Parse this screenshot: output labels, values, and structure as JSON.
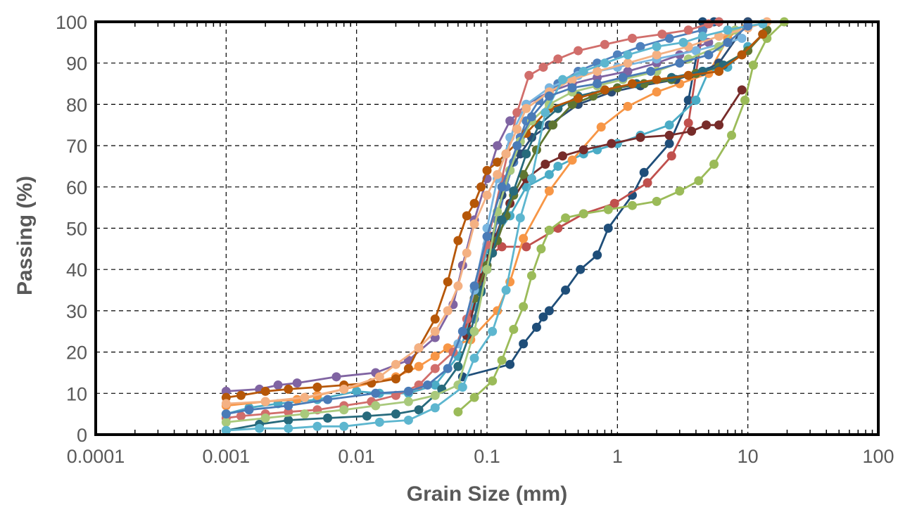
{
  "chart_data": {
    "type": "line",
    "title": "",
    "xlabel": "Grain Size (mm)",
    "ylabel": "Passing (%)",
    "xscale": "log",
    "xlim": [
      0.0001,
      100
    ],
    "ylim": [
      0,
      100
    ],
    "xticks": [
      "0.0001",
      "0.001",
      "0.01",
      "0.1",
      "1",
      "10",
      "100"
    ],
    "yticks": [
      "0",
      "10",
      "20",
      "30",
      "40",
      "50",
      "60",
      "70",
      "80",
      "90",
      "100"
    ],
    "grid": "dashed, black",
    "legend": "none",
    "series": [
      {
        "color": "#1F4E79",
        "x": [
          0.065,
          0.15,
          0.19,
          0.24,
          0.27,
          0.3,
          0.4,
          0.52,
          0.7,
          0.85,
          1.3,
          1.6,
          2.5,
          3.5,
          4.5,
          5.5
        ],
        "y": [
          14,
          17,
          22,
          26,
          28.5,
          30,
          35,
          40,
          43.5,
          50,
          58,
          63.5,
          70.5,
          81,
          100,
          100
        ]
      },
      {
        "color": "#C0504D",
        "x": [
          0.07,
          0.08,
          0.09,
          0.11,
          0.13,
          0.2,
          0.35,
          0.55,
          0.95,
          1.7,
          2.6,
          3.5,
          4.5
        ],
        "y": [
          26,
          33,
          37,
          44,
          45.5,
          45.5,
          50,
          53.5,
          56,
          61,
          67.5,
          75.5,
          98
        ]
      },
      {
        "color": "#9BBB59",
        "x": [
          0.06,
          0.08,
          0.11,
          0.13,
          0.16,
          0.19,
          0.22,
          0.26,
          0.3,
          0.4,
          0.55,
          0.85,
          1.3,
          2,
          3,
          4.2,
          5.5,
          7.5,
          9.5,
          11,
          14,
          19
        ],
        "y": [
          5.5,
          9,
          13,
          18,
          25.5,
          31,
          38.5,
          45,
          49.5,
          52.5,
          53.5,
          54.5,
          55.5,
          56.5,
          59,
          61.5,
          65.5,
          72.5,
          81,
          89.5,
          96,
          100
        ]
      },
      {
        "color": "#8064A2",
        "x": [
          0.001,
          0.0018,
          0.0025,
          0.0035,
          0.007,
          0.014,
          0.025,
          0.04,
          0.055,
          0.065,
          0.08,
          0.1,
          0.12,
          0.15,
          0.2,
          0.3,
          0.45,
          0.7,
          1.2,
          2,
          3,
          5
        ],
        "y": [
          10.5,
          11,
          12,
          12.5,
          14,
          15,
          18,
          23.5,
          31.5,
          41,
          52,
          62,
          70,
          76,
          80,
          83,
          85,
          86.5,
          88,
          90,
          92,
          95
        ]
      },
      {
        "color": "#4BACC6",
        "x": [
          0.001,
          0.0015,
          0.0025,
          0.005,
          0.01,
          0.015,
          0.025,
          0.04,
          0.06,
          0.08,
          0.1,
          0.15,
          0.2,
          0.3,
          0.35,
          0.55,
          0.7,
          1,
          1.5,
          2.5,
          4,
          5,
          7,
          10
        ],
        "y": [
          5,
          6.5,
          7.5,
          8.5,
          10.5,
          10,
          10,
          12,
          19,
          31,
          45,
          53,
          60,
          63,
          65,
          68,
          69,
          70.5,
          72.5,
          75,
          81,
          88,
          89,
          94
        ]
      },
      {
        "color": "#F79646",
        "x": [
          0.001,
          0.002,
          0.0035,
          0.005,
          0.008,
          0.013,
          0.02,
          0.03,
          0.04,
          0.05,
          0.075,
          0.12,
          0.15,
          0.19,
          0.3,
          0.45,
          0.75,
          1.2,
          2,
          3,
          5,
          7,
          10
        ],
        "y": [
          7,
          8,
          8.5,
          9.5,
          11,
          12.5,
          14,
          16.5,
          19,
          21,
          23,
          30,
          37,
          47.5,
          59,
          66.5,
          74.5,
          79.5,
          83,
          85,
          87.5,
          96,
          100
        ]
      },
      {
        "color": "#4F81BD",
        "x": [
          0.08,
          0.1,
          0.12,
          0.14,
          0.16,
          0.18,
          0.2,
          0.25,
          0.35,
          0.5,
          0.7,
          1,
          1.5,
          2.5,
          4.5,
          6
        ],
        "y": [
          28,
          40,
          52,
          60,
          66,
          72,
          76,
          81,
          85,
          88,
          90,
          92,
          94,
          96,
          98,
          100
        ]
      },
      {
        "color": "#2C4D75",
        "x": [
          0.09,
          0.11,
          0.13,
          0.15,
          0.18,
          0.22,
          0.3,
          0.5,
          0.9,
          1.5,
          2.8,
          4.5,
          6,
          10
        ],
        "y": [
          35,
          48,
          58,
          64,
          68,
          72,
          75,
          80,
          83,
          84.5,
          86,
          88,
          90,
          100
        ]
      },
      {
        "color": "#772C2A",
        "x": [
          0.07,
          0.09,
          0.11,
          0.13,
          0.15,
          0.2,
          0.28,
          0.38,
          0.55,
          0.9,
          1.5,
          2.5,
          3.7,
          4.8,
          6,
          9
        ],
        "y": [
          24,
          38,
          46,
          52,
          56,
          62,
          65.5,
          67.5,
          69,
          70.5,
          72,
          72.5,
          73.5,
          75,
          75,
          83.5
        ]
      },
      {
        "color": "#5F7530",
        "x": [
          0.08,
          0.1,
          0.12,
          0.14,
          0.16,
          0.19,
          0.24,
          0.32,
          0.45,
          0.65,
          1,
          1.6,
          2.6,
          4,
          6,
          10,
          14
        ],
        "y": [
          33,
          41,
          47,
          53,
          58,
          63,
          69,
          75,
          80,
          82,
          84,
          85,
          86,
          87.5,
          89,
          93,
          98
        ]
      },
      {
        "color": "#276A7C",
        "x": [
          0.001,
          0.0018,
          0.003,
          0.006,
          0.012,
          0.02,
          0.03,
          0.045,
          0.06,
          0.075,
          0.09,
          0.11,
          0.13,
          0.16,
          0.2,
          0.25,
          0.35,
          0.5,
          0.8,
          1.4,
          2.6,
          4.5,
          6.5,
          9,
          13
        ],
        "y": [
          1,
          2.5,
          3.5,
          4,
          4.5,
          5,
          6,
          11,
          16.5,
          25,
          34.5,
          44,
          52,
          59,
          68,
          75,
          79,
          82,
          83.5,
          85,
          86.5,
          88,
          89.5,
          92,
          97
        ]
      },
      {
        "color": "#B65708",
        "x": [
          0.001,
          0.0013,
          0.002,
          0.003,
          0.005,
          0.008,
          0.013,
          0.02,
          0.025,
          0.03,
          0.04,
          0.05,
          0.06,
          0.07,
          0.08,
          0.09,
          0.1,
          0.12,
          0.14,
          0.2,
          0.3,
          0.5,
          0.8,
          1.3,
          2,
          3.5,
          6,
          9,
          13
        ],
        "y": [
          9,
          9.5,
          10.5,
          11,
          11.5,
          12,
          12.5,
          13.5,
          16,
          21,
          28,
          37,
          47,
          53,
          56,
          60,
          64,
          66,
          68,
          73,
          79,
          81.5,
          83.5,
          85,
          86,
          87,
          88,
          92,
          97
        ]
      },
      {
        "color": "#D16E6B",
        "x": [
          0.001,
          0.0013,
          0.002,
          0.003,
          0.005,
          0.008,
          0.013,
          0.02,
          0.03,
          0.04,
          0.055,
          0.07,
          0.1,
          0.13,
          0.17,
          0.21,
          0.27,
          0.35,
          0.5,
          0.8,
          1.3,
          2.2,
          3.5,
          5,
          6
        ],
        "y": [
          4,
          4.5,
          5,
          5.5,
          6,
          7,
          8,
          9.5,
          12,
          16,
          20,
          28,
          46,
          62,
          78,
          87,
          89,
          91,
          93,
          94.5,
          96,
          97,
          98,
          99.5,
          100
        ]
      },
      {
        "color": "#79B6E0",
        "x": [
          0.06,
          0.08,
          0.1,
          0.12,
          0.15,
          0.2,
          0.3,
          0.5,
          1,
          2,
          4,
          9
        ],
        "y": [
          22,
          35,
          50,
          62,
          72,
          80,
          84,
          87,
          89,
          91,
          93,
          96
        ]
      },
      {
        "color": "#A9C97C",
        "x": [
          0.001,
          0.002,
          0.004,
          0.008,
          0.014,
          0.025,
          0.04,
          0.06,
          0.08,
          0.1,
          0.12,
          0.15,
          0.18,
          0.22,
          0.3,
          0.45,
          0.7,
          1.1,
          2,
          3.5,
          6,
          8
        ],
        "y": [
          3,
          4,
          5,
          6,
          7,
          8,
          9.5,
          12,
          25,
          40,
          54,
          64,
          71,
          76,
          80,
          83,
          84.5,
          86,
          88,
          91,
          94,
          98
        ]
      },
      {
        "color": "#F4B183",
        "x": [
          0.001,
          0.002,
          0.004,
          0.008,
          0.015,
          0.02,
          0.03,
          0.04,
          0.05,
          0.06,
          0.07,
          0.08,
          0.1,
          0.12,
          0.14,
          0.17,
          0.2,
          0.3,
          0.45,
          0.7,
          1.2,
          2,
          3.5,
          6,
          10,
          14
        ],
        "y": [
          7.5,
          8,
          9,
          11,
          14,
          17,
          21,
          25,
          30,
          36,
          44,
          51,
          58,
          63,
          68,
          74,
          79,
          83,
          86,
          88,
          90,
          92,
          94,
          96.5,
          98.5,
          100
        ]
      },
      {
        "color": "#5DB6CF",
        "x": [
          0.001,
          0.0018,
          0.003,
          0.005,
          0.008,
          0.015,
          0.025,
          0.04,
          0.065,
          0.08,
          0.11,
          0.14,
          0.18,
          0.22,
          0.28,
          0.38,
          0.55,
          0.8,
          1.2,
          2,
          3.2,
          4.5,
          7,
          10,
          13
        ],
        "y": [
          1,
          1.5,
          1.5,
          2,
          2,
          3,
          3.5,
          6.5,
          11.5,
          18.5,
          25,
          35,
          52.5,
          62,
          78,
          86,
          88,
          90,
          92,
          94,
          95,
          96.5,
          98,
          99,
          99.5
        ]
      },
      {
        "color": "#4A7BB7",
        "x": [
          0.001,
          0.0015,
          0.003,
          0.006,
          0.014,
          0.025,
          0.035,
          0.05,
          0.065,
          0.08,
          0.1,
          0.13,
          0.17,
          0.22,
          0.3,
          0.45,
          0.7,
          1.1,
          1.8,
          3,
          5,
          7,
          10
        ],
        "y": [
          5,
          6,
          7,
          8.5,
          10,
          10.5,
          12,
          16,
          25,
          36,
          48,
          60,
          70,
          77,
          82,
          84,
          85,
          86.5,
          88,
          90,
          92,
          95,
          99
        ]
      }
    ]
  }
}
